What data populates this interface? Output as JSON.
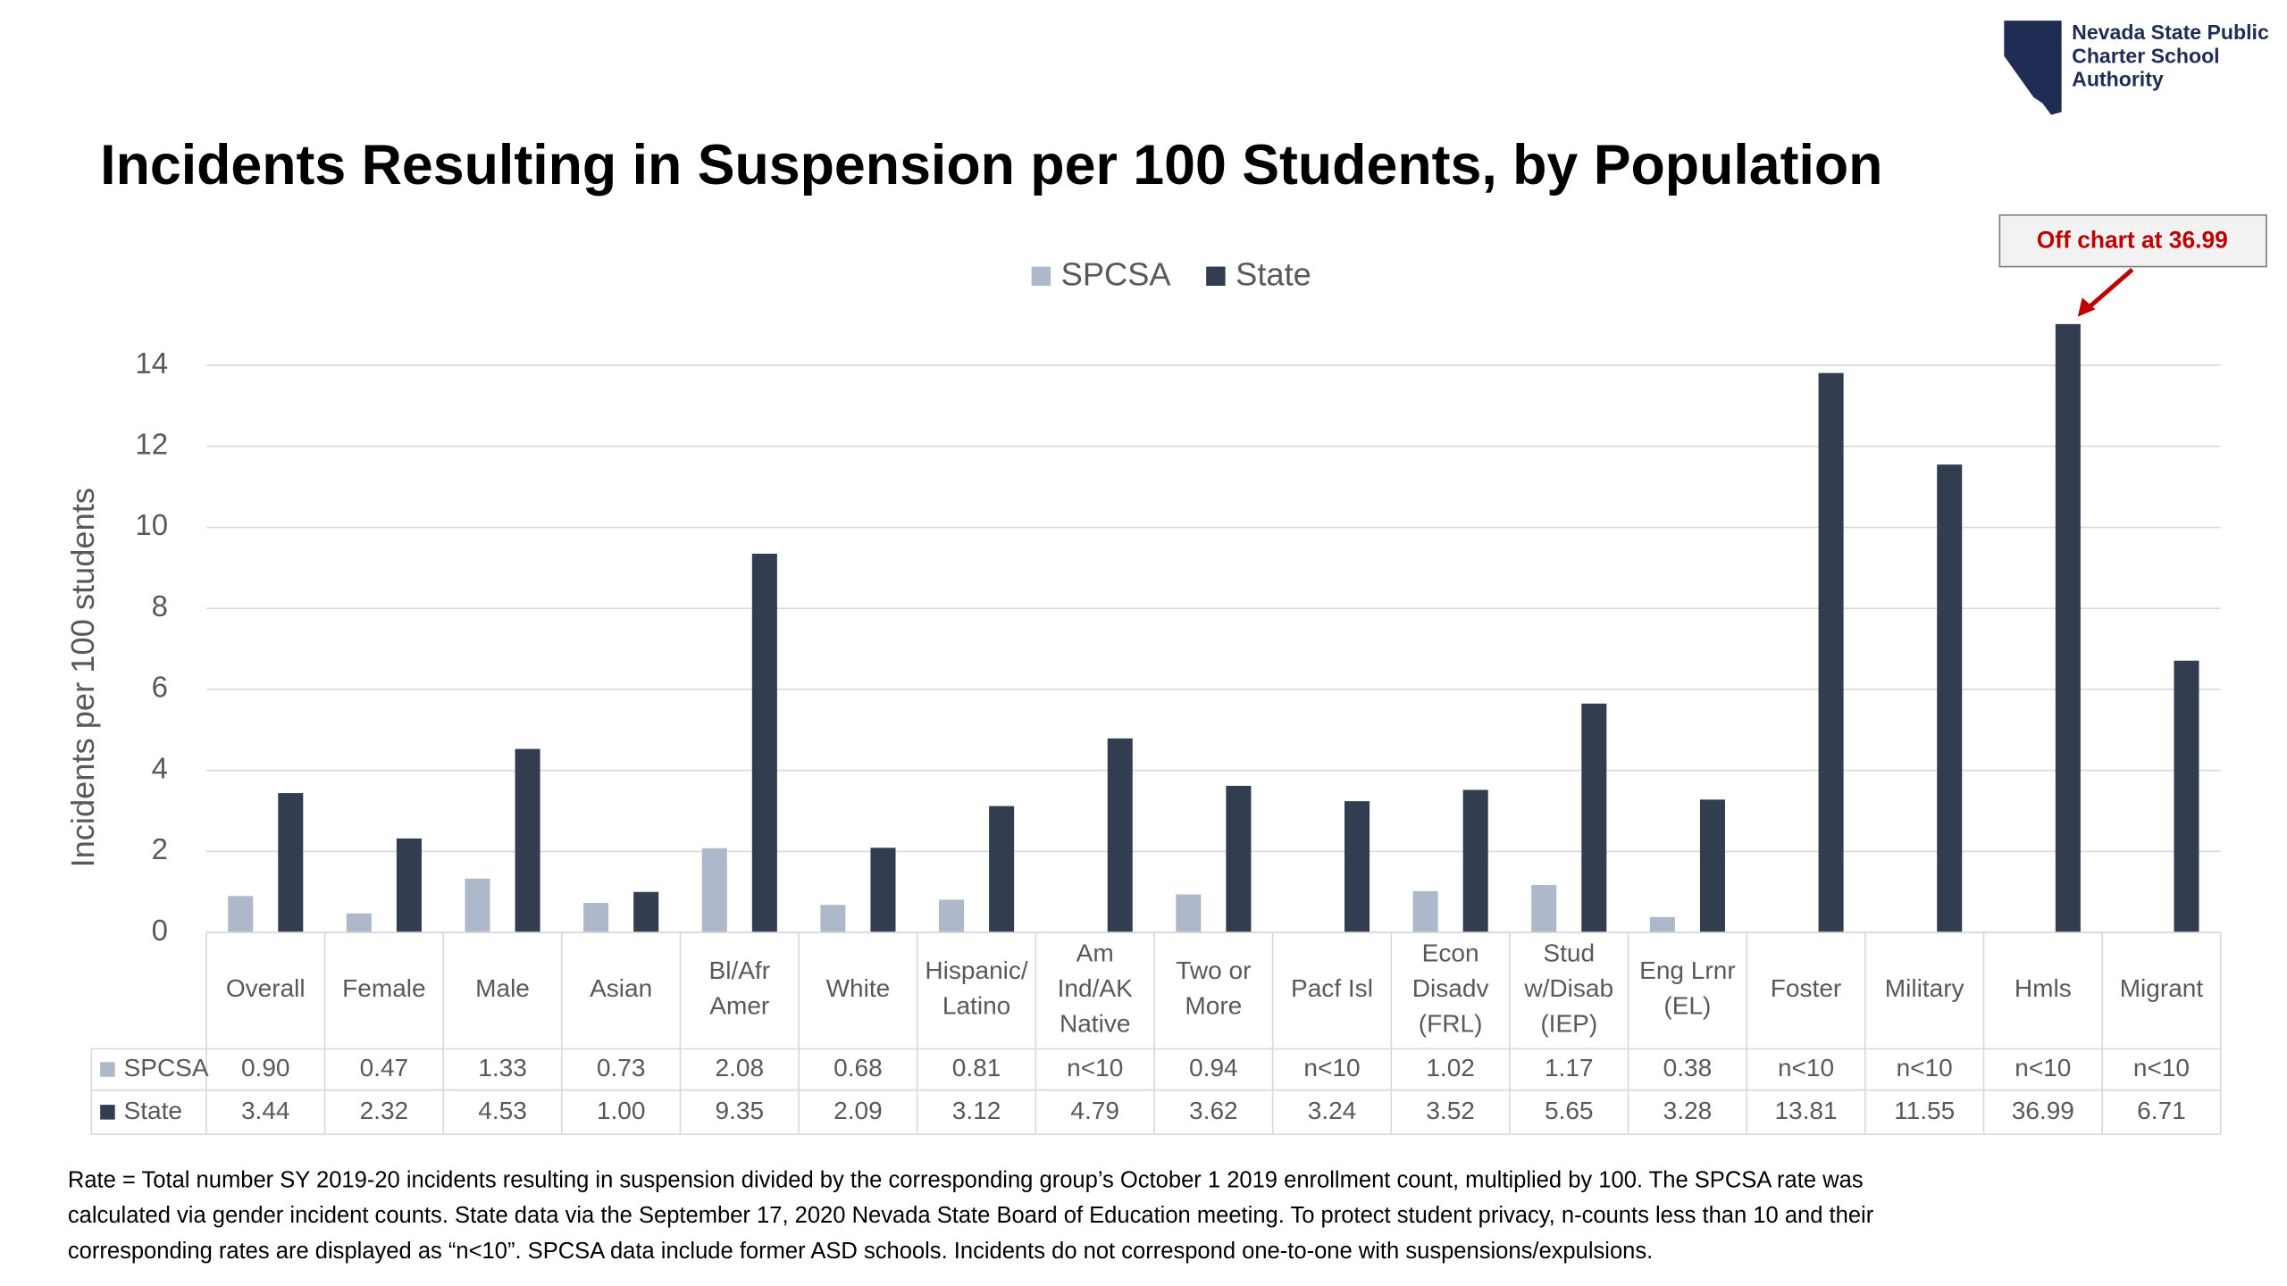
{
  "org": "Nevada State Public Charter School Authority",
  "chart_data": {
    "type": "bar",
    "title": "Incidents Resulting in Suspension per 100 Students, by Population",
    "y_label": "Incidents per 100 students",
    "annotation": "Off chart at 36.99",
    "categories": [
      [
        "Overall"
      ],
      [
        "Female"
      ],
      [
        "Male"
      ],
      [
        "Asian"
      ],
      [
        "Bl/Afr",
        "Amer"
      ],
      [
        "White"
      ],
      [
        "Hispanic/",
        "Latino"
      ],
      [
        "Am",
        "Ind/AK",
        "Native"
      ],
      [
        "Two or",
        "More"
      ],
      [
        "Pacf Isl"
      ],
      [
        "Econ",
        "Disadv",
        "(FRL)"
      ],
      [
        "Stud",
        "w/Disab",
        "(IEP)"
      ],
      [
        "Eng Lrnr",
        "(EL)"
      ],
      [
        "Foster"
      ],
      [
        "Military"
      ],
      [
        "Hmls"
      ],
      [
        "Migrant"
      ]
    ],
    "series": [
      {
        "name": "SPCSA",
        "color": "#adb9ca",
        "values": [
          0.9,
          0.47,
          1.33,
          0.73,
          2.08,
          0.68,
          0.81,
          null,
          0.94,
          null,
          1.02,
          1.17,
          0.38,
          null,
          null,
          null,
          null
        ],
        "value_labels": [
          "0.90",
          "0.47",
          "1.33",
          "0.73",
          "2.08",
          "0.68",
          "0.81",
          "n<10",
          "0.94",
          "n<10",
          "1.02",
          "1.17",
          "0.38",
          "n<10",
          "n<10",
          "n<10",
          "n<10"
        ]
      },
      {
        "name": "State",
        "color": "#323e4f",
        "values": [
          3.44,
          2.32,
          4.53,
          1.0,
          9.35,
          2.09,
          3.12,
          4.79,
          3.62,
          3.24,
          3.52,
          5.65,
          3.28,
          13.81,
          11.55,
          36.99,
          6.71
        ],
        "value_labels": [
          "3.44",
          "2.32",
          "4.53",
          "1.00",
          "9.35",
          "2.09",
          "3.12",
          "4.79",
          "3.62",
          "3.24",
          "3.52",
          "5.65",
          "3.28",
          "13.81",
          "11.55",
          "36.99",
          "6.71"
        ]
      }
    ],
    "ylim": [
      0,
      15
    ],
    "yticks": [
      0,
      2,
      4,
      6,
      8,
      10,
      12,
      14
    ],
    "grid": true,
    "footnote": [
      "Rate = Total number SY 2019-20 incidents resulting in suspension divided by the corresponding group’s October 1 2019 enrollment count, multiplied by 100. The SPCSA rate was",
      "calculated via gender incident counts. State data via the September 17, 2020 Nevada State Board of Education meeting. To protect student privacy, n-counts less than 10 and their",
      "corresponding rates are displayed as “n<10”. SPCSA data include former ASD schools. Incidents do not correspond one-to-one with suspensions/expulsions."
    ]
  }
}
